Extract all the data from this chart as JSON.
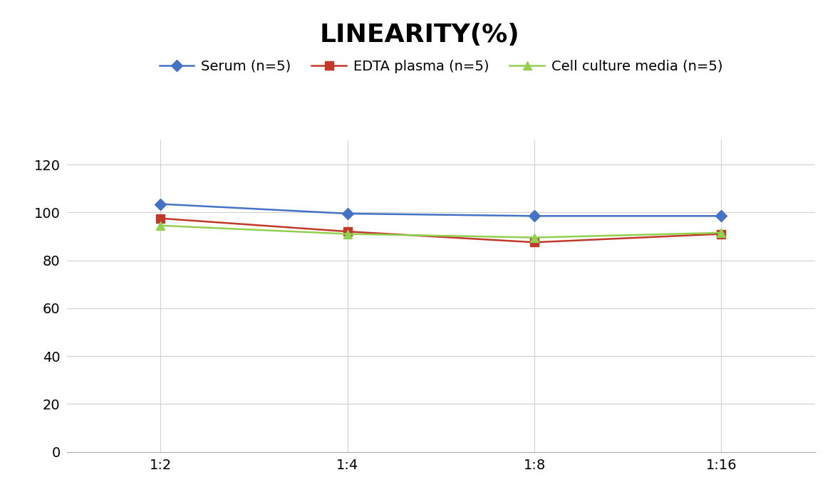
{
  "title": "LINEARITY(%)",
  "x_labels": [
    "1:2",
    "1:4",
    "1:8",
    "1:16"
  ],
  "x_positions": [
    0,
    1,
    2,
    3
  ],
  "series": [
    {
      "label": "Serum (n=5)",
      "values": [
        103.5,
        99.5,
        98.5,
        98.5
      ],
      "color": "#4472C4",
      "marker": "D",
      "linewidth": 1.8,
      "markersize": 8
    },
    {
      "label": "EDTA plasma (n=5)",
      "values": [
        97.5,
        92.0,
        87.5,
        91.0
      ],
      "color": "#C0392B",
      "marker": "s",
      "linewidth": 1.8,
      "markersize": 8
    },
    {
      "label": "Cell culture media (n=5)",
      "values": [
        94.5,
        91.0,
        89.5,
        91.5
      ],
      "color": "#92D050",
      "marker": "^",
      "linewidth": 1.8,
      "markersize": 8
    }
  ],
  "ylim": [
    0,
    130
  ],
  "yticks": [
    0,
    20,
    40,
    60,
    80,
    100,
    120
  ],
  "title_fontsize": 26,
  "tick_fontsize": 14,
  "legend_fontsize": 14,
  "background_color": "#ffffff",
  "grid_color": "#d0d0d0"
}
